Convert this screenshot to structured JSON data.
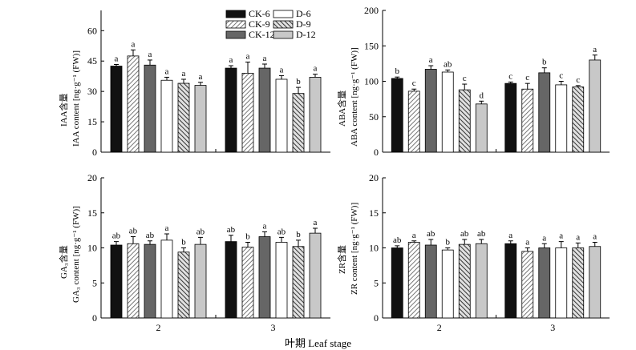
{
  "figure": {
    "x_axis_label": "叶期 Leaf stage"
  },
  "colors": {
    "CK-6": "#111111",
    "CK-9": "hatch-light",
    "CK-12": "#666666",
    "D-6": "#ffffff",
    "D-9": "hatch-dark",
    "D-12": "#c8c8c8"
  },
  "chart_data": [
    {
      "type": "bar",
      "panel": "IAA",
      "ylabel_cn": "IAA含量",
      "ylabel_en": "IAA content [ng·g⁻¹ (FW)]",
      "categories": [
        "2",
        "3"
      ],
      "ylim": [
        0,
        70
      ],
      "yticks": [
        0,
        15,
        30,
        45,
        60
      ],
      "legend": {
        "placement": "top-right",
        "entries": [
          "CK-6",
          "D-6",
          "CK-9",
          "D-9",
          "CK-12",
          "D-12"
        ]
      },
      "series": [
        {
          "name": "CK-6",
          "values": [
            42.5,
            41.5
          ],
          "errors": [
            0.8,
            1.2
          ],
          "letters": [
            "a",
            "a"
          ]
        },
        {
          "name": "CK-9",
          "values": [
            47.5,
            39.0
          ],
          "errors": [
            3.0,
            5.5
          ],
          "letters": [
            "a",
            "a"
          ]
        },
        {
          "name": "CK-12",
          "values": [
            43.0,
            41.5
          ],
          "errors": [
            2.5,
            2.0
          ],
          "letters": [
            "a",
            "a"
          ]
        },
        {
          "name": "D-6",
          "values": [
            35.5,
            36.0
          ],
          "errors": [
            1.5,
            1.8
          ],
          "letters": [
            "a",
            "a"
          ]
        },
        {
          "name": "D-9",
          "values": [
            34.0,
            29.0
          ],
          "errors": [
            2.0,
            3.0
          ],
          "letters": [
            "a",
            "b"
          ]
        },
        {
          "name": "D-12",
          "values": [
            33.0,
            37.0
          ],
          "errors": [
            1.5,
            1.5
          ],
          "letters": [
            "a",
            "a"
          ]
        }
      ]
    },
    {
      "type": "bar",
      "panel": "ABA",
      "ylabel_cn": "ABA含量",
      "ylabel_en": "ABA content [ng·g⁻¹ (FW)]",
      "categories": [
        "2",
        "3"
      ],
      "ylim": [
        0,
        200
      ],
      "yticks": [
        0,
        50,
        100,
        150,
        200
      ],
      "series": [
        {
          "name": "CK-6",
          "values": [
            104,
            97
          ],
          "errors": [
            2,
            2
          ],
          "letters": [
            "b",
            "c"
          ]
        },
        {
          "name": "CK-9",
          "values": [
            86,
            89
          ],
          "errors": [
            3,
            8
          ],
          "letters": [
            "c",
            "c"
          ]
        },
        {
          "name": "CK-12",
          "values": [
            117,
            112
          ],
          "errors": [
            5,
            7
          ],
          "letters": [
            "a",
            "b"
          ]
        },
        {
          "name": "D-6",
          "values": [
            113,
            95
          ],
          "errors": [
            3,
            5
          ],
          "letters": [
            "ab",
            "c"
          ]
        },
        {
          "name": "D-9",
          "values": [
            88,
            92
          ],
          "errors": [
            8,
            2
          ],
          "letters": [
            "c",
            "c"
          ]
        },
        {
          "name": "D-12",
          "values": [
            68,
            130
          ],
          "errors": [
            4,
            7
          ],
          "letters": [
            "d",
            "a"
          ]
        }
      ]
    },
    {
      "type": "bar",
      "panel": "GA3",
      "ylabel_cn": "GA₃含量",
      "ylabel_en": "GA₃ content [ng·g⁻¹ (FW)]",
      "categories": [
        "2",
        "3"
      ],
      "ylim": [
        0,
        20
      ],
      "yticks": [
        0,
        5,
        10,
        15,
        20
      ],
      "series": [
        {
          "name": "CK-6",
          "values": [
            10.4,
            10.9
          ],
          "errors": [
            0.5,
            0.9
          ],
          "letters": [
            "ab",
            "ab"
          ]
        },
        {
          "name": "CK-9",
          "values": [
            10.6,
            10.1
          ],
          "errors": [
            1.0,
            0.7
          ],
          "letters": [
            "ab",
            "b"
          ]
        },
        {
          "name": "CK-12",
          "values": [
            10.5,
            11.6
          ],
          "errors": [
            0.5,
            0.7
          ],
          "letters": [
            "ab",
            "a"
          ]
        },
        {
          "name": "D-6",
          "values": [
            11.1,
            10.8
          ],
          "errors": [
            0.9,
            0.7
          ],
          "letters": [
            "a",
            "ab"
          ]
        },
        {
          "name": "D-9",
          "values": [
            9.4,
            10.2
          ],
          "errors": [
            0.6,
            0.9
          ],
          "letters": [
            "b",
            "b"
          ]
        },
        {
          "name": "D-12",
          "values": [
            10.5,
            12.1
          ],
          "errors": [
            1.0,
            0.7
          ],
          "letters": [
            "ab",
            "a"
          ]
        }
      ]
    },
    {
      "type": "bar",
      "panel": "ZR",
      "ylabel_cn": "ZR含量",
      "ylabel_en": "ZR content [ng·g⁻¹ (FW)]",
      "categories": [
        "2",
        "3"
      ],
      "ylim": [
        0,
        20
      ],
      "yticks": [
        0,
        5,
        10,
        15,
        20
      ],
      "series": [
        {
          "name": "CK-6",
          "values": [
            10.0,
            10.6
          ],
          "errors": [
            0.3,
            0.4
          ],
          "letters": [
            "ab",
            "a"
          ]
        },
        {
          "name": "CK-9",
          "values": [
            10.8,
            9.5
          ],
          "errors": [
            0.2,
            0.5
          ],
          "letters": [
            "a",
            "a"
          ]
        },
        {
          "name": "CK-12",
          "values": [
            10.4,
            10.0
          ],
          "errors": [
            0.8,
            0.6
          ],
          "letters": [
            "ab",
            "a"
          ]
        },
        {
          "name": "D-6",
          "values": [
            9.7,
            10.0
          ],
          "errors": [
            0.3,
            0.9
          ],
          "letters": [
            "b",
            "a"
          ]
        },
        {
          "name": "D-9",
          "values": [
            10.5,
            10.0
          ],
          "errors": [
            0.7,
            0.7
          ],
          "letters": [
            "ab",
            "a"
          ]
        },
        {
          "name": "D-12",
          "values": [
            10.6,
            10.2
          ],
          "errors": [
            0.6,
            0.6
          ],
          "letters": [
            "ab",
            "a"
          ]
        }
      ]
    }
  ]
}
